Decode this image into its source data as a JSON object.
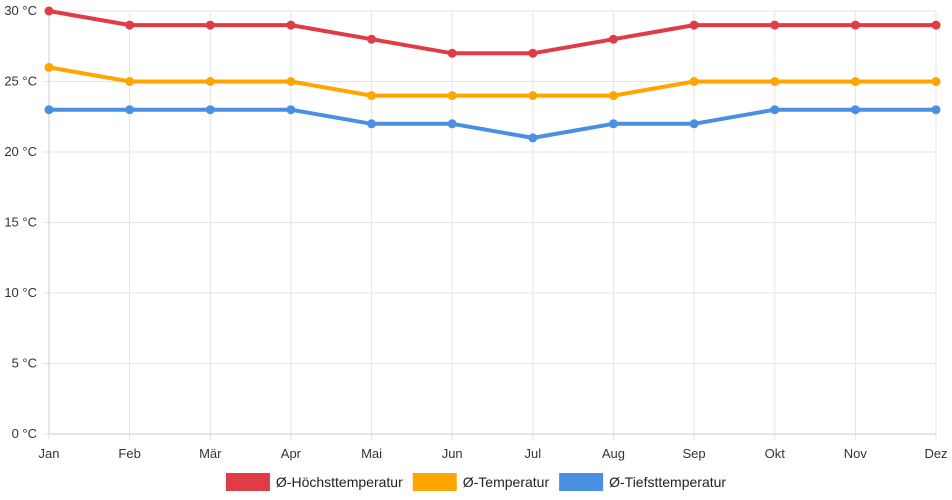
{
  "chart_data": {
    "type": "line",
    "title": "",
    "xlabel": "",
    "ylabel": "",
    "categories": [
      "Jan",
      "Feb",
      "Mär",
      "Apr",
      "Mai",
      "Jun",
      "Jul",
      "Aug",
      "Sep",
      "Okt",
      "Nov",
      "Dez"
    ],
    "ylim": [
      0,
      30
    ],
    "y_ticks": [
      0,
      5,
      10,
      15,
      20,
      25,
      30
    ],
    "y_tick_suffix": " °C",
    "grid": true,
    "legend_position": "bottom",
    "series": [
      {
        "name": "Ø-Höchsttemperatur",
        "color": "#e03c46",
        "values": [
          30,
          29,
          29,
          29,
          28,
          27,
          27,
          28,
          29,
          29,
          29,
          29
        ]
      },
      {
        "name": "Ø-Temperatur",
        "color": "#ffa500",
        "values": [
          26,
          25,
          25,
          25,
          24,
          24,
          24,
          24,
          25,
          25,
          25,
          25
        ]
      },
      {
        "name": "Ø-Tiefsttemperatur",
        "color": "#4a90e2",
        "values": [
          23,
          23,
          23,
          23,
          22,
          22,
          21,
          22,
          22,
          23,
          23,
          23
        ]
      }
    ]
  }
}
